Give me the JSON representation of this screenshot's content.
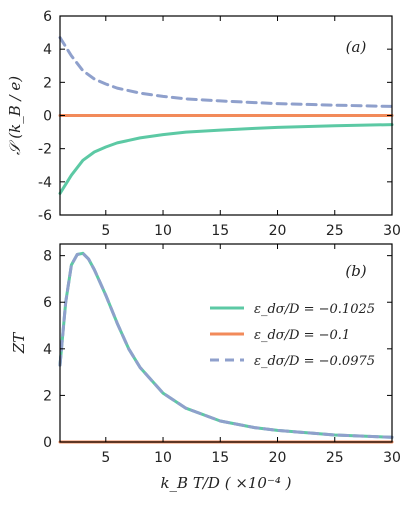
{
  "chart_data": [
    {
      "type": "line",
      "panel_label": "(a)",
      "ylabel": "𝒮 (k_B / e)",
      "xlim": [
        1,
        30
      ],
      "ylim": [
        -6,
        6
      ],
      "xticks": [
        "5",
        "10",
        "15",
        "20",
        "25",
        "30"
      ],
      "yticks": [
        "-6",
        "-4",
        "-2",
        "0",
        "2",
        "4",
        "6"
      ],
      "series": [
        {
          "color": "#5cc9a4",
          "dash": false,
          "x": [
            1,
            2,
            3,
            4,
            5,
            6,
            8,
            10,
            12,
            15,
            18,
            20,
            25,
            30
          ],
          "y": [
            -4.7,
            -3.6,
            -2.7,
            -2.2,
            -1.9,
            -1.65,
            -1.35,
            -1.15,
            -1.0,
            -0.88,
            -0.78,
            -0.72,
            -0.62,
            -0.55
          ]
        },
        {
          "color": "#f28a5a",
          "dash": false,
          "x": [
            1,
            30
          ],
          "y": [
            0,
            0
          ]
        },
        {
          "color": "#8fa0cc",
          "dash": true,
          "x": [
            1,
            2,
            3,
            4,
            5,
            6,
            8,
            10,
            12,
            15,
            18,
            20,
            25,
            30
          ],
          "y": [
            4.7,
            3.6,
            2.7,
            2.2,
            1.9,
            1.65,
            1.35,
            1.15,
            1.0,
            0.88,
            0.78,
            0.72,
            0.62,
            0.55
          ]
        }
      ]
    },
    {
      "type": "line",
      "panel_label": "(b)",
      "ylabel": "ZT",
      "xlabel": "k_B T/D  ( ×10⁻⁴ )",
      "xlim": [
        1,
        30
      ],
      "ylim": [
        0,
        8.5
      ],
      "xticks": [
        "5",
        "10",
        "15",
        "20",
        "25",
        "30"
      ],
      "yticks": [
        "0",
        "2",
        "4",
        "6",
        "8"
      ],
      "legend_position": "right",
      "series": [
        {
          "name": "ε_dσ/D = −0.1025",
          "color": "#5cc9a4",
          "dash": false,
          "x": [
            1,
            1.5,
            2,
            2.5,
            3,
            3.5,
            4,
            5,
            6,
            7,
            8,
            10,
            12,
            15,
            18,
            20,
            25,
            30
          ],
          "y": [
            3.3,
            6.0,
            7.6,
            8.05,
            8.1,
            7.85,
            7.4,
            6.3,
            5.1,
            4.0,
            3.2,
            2.1,
            1.45,
            0.9,
            0.62,
            0.5,
            0.3,
            0.2
          ]
        },
        {
          "name": "ε_dσ/D = −0.1",
          "color": "#f28a5a",
          "dash": false,
          "x": [
            1,
            30
          ],
          "y": [
            0,
            0
          ]
        },
        {
          "name": "ε_dσ/D = −0.0975",
          "color": "#8fa0cc",
          "dash": true,
          "x": [
            1,
            1.5,
            2,
            2.5,
            3,
            3.5,
            4,
            5,
            6,
            7,
            8,
            10,
            12,
            15,
            18,
            20,
            25,
            30
          ],
          "y": [
            3.3,
            6.0,
            7.6,
            8.05,
            8.1,
            7.85,
            7.4,
            6.3,
            5.1,
            4.0,
            3.2,
            2.1,
            1.45,
            0.9,
            0.62,
            0.5,
            0.3,
            0.2
          ]
        }
      ]
    }
  ]
}
